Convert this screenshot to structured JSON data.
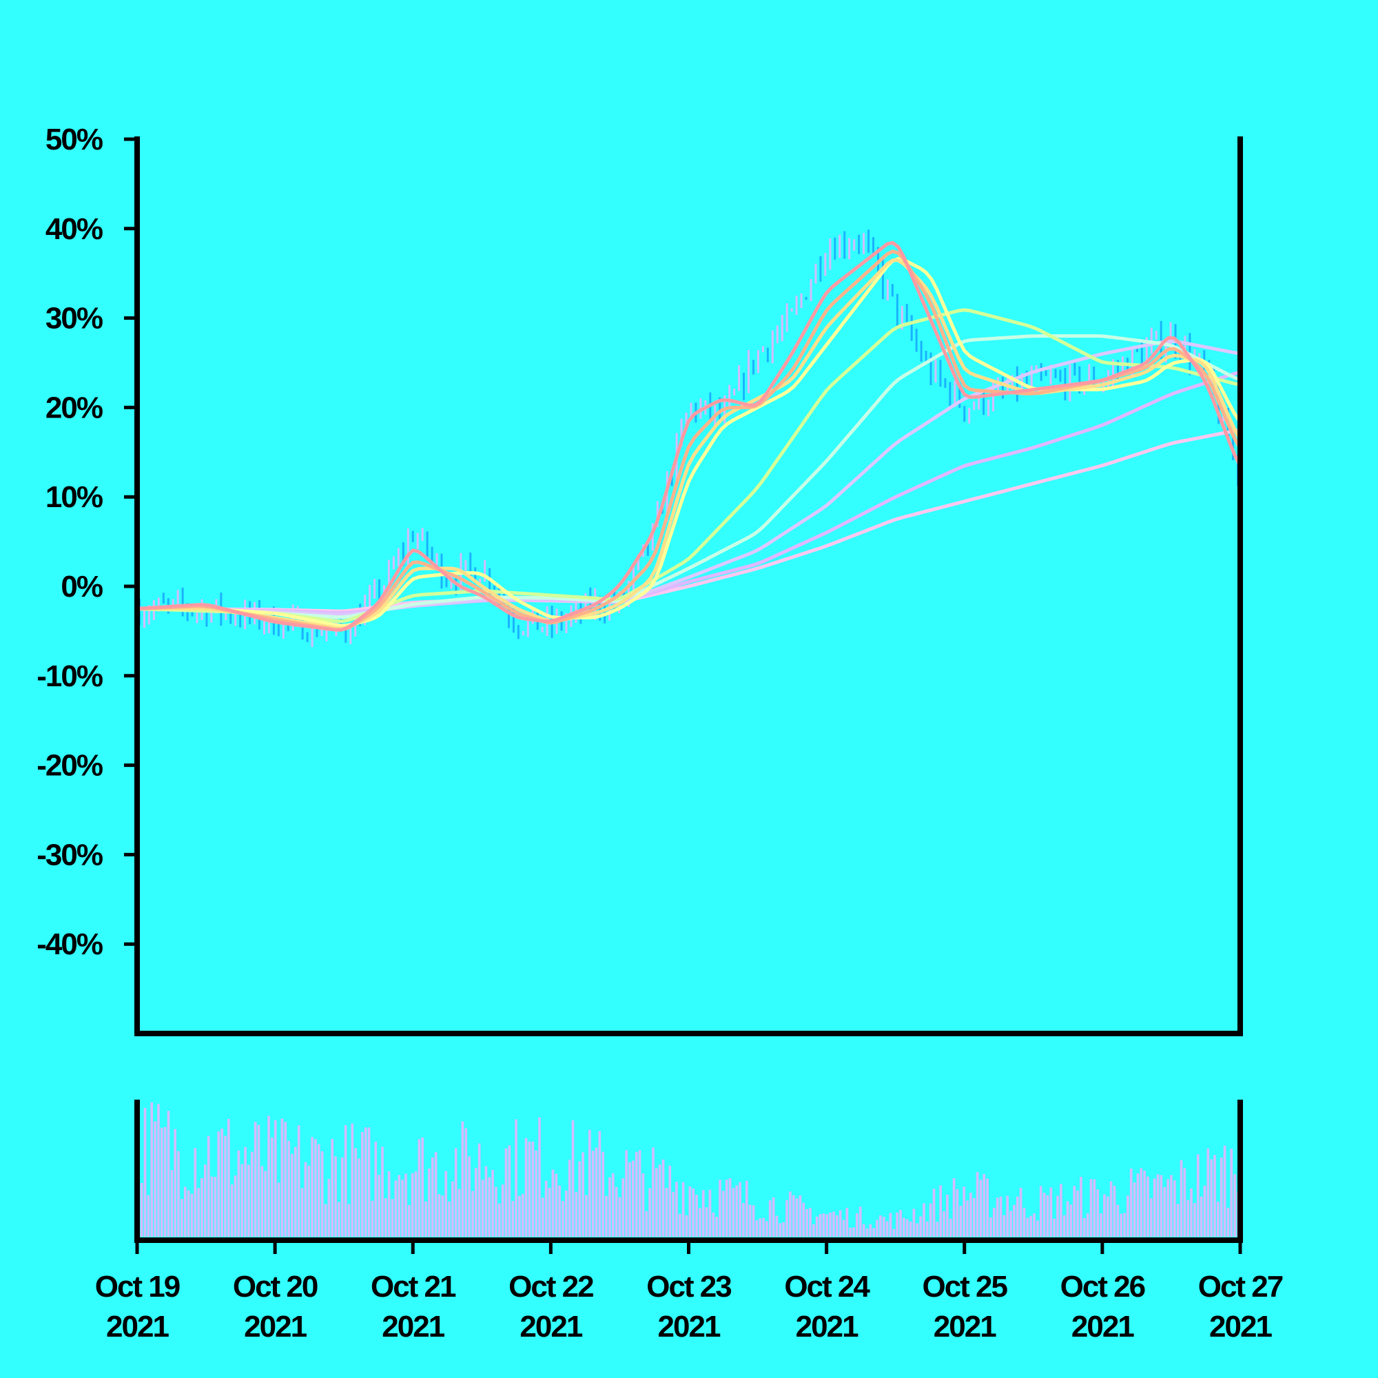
{
  "chart_data": {
    "type": "line",
    "subtype": "candlestick-with-moving-averages-and-volume",
    "title": "",
    "xlabel": "",
    "ylabel": "",
    "ylim": [
      -0.5,
      0.5
    ],
    "y_ticks": [
      0.5,
      0.4,
      0.3,
      0.2,
      0.1,
      0.0,
      -0.1,
      -0.2,
      -0.3,
      -0.4
    ],
    "y_tick_labels": [
      "50%",
      "40%",
      "30%",
      "20%",
      "10%",
      "0%",
      "-10%",
      "-20%",
      "-30%",
      "-40%"
    ],
    "x_range": [
      "2021-10-19",
      "2021-10-27"
    ],
    "x_ticks": [
      "2021-10-19",
      "2021-10-20",
      "2021-10-21",
      "2021-10-22",
      "2021-10-23",
      "2021-10-24",
      "2021-10-25",
      "2021-10-26",
      "2021-10-27"
    ],
    "x_tick_labels": [
      [
        "Oct 19",
        "2021"
      ],
      [
        "Oct 20",
        "2021"
      ],
      [
        "Oct 21",
        "2021"
      ],
      [
        "Oct 22",
        "2021"
      ],
      [
        "Oct 23",
        "2021"
      ],
      [
        "Oct 24",
        "2021"
      ],
      [
        "Oct 25",
        "2021"
      ],
      [
        "Oct 26",
        "2021"
      ],
      [
        "Oct 27",
        "2021"
      ]
    ],
    "grid": false,
    "legend": "none",
    "price_path": {
      "x": [
        "2021-10-19T00:00",
        "2021-10-19T12:00",
        "2021-10-20T00:00",
        "2021-10-20T12:00",
        "2021-10-20T18:00",
        "2021-10-21T00:00",
        "2021-10-21T06:00",
        "2021-10-21T12:00",
        "2021-10-21T18:00",
        "2021-10-22T00:00",
        "2021-10-22T08:00",
        "2021-10-22T12:00",
        "2021-10-22T18:00",
        "2021-10-23T00:00",
        "2021-10-23T06:00",
        "2021-10-23T12:00",
        "2021-10-23T18:00",
        "2021-10-24T00:00",
        "2021-10-24T06:00",
        "2021-10-24T12:00",
        "2021-10-24T18:00",
        "2021-10-25T00:00",
        "2021-10-25T12:00",
        "2021-10-26T00:00",
        "2021-10-26T06:00",
        "2021-10-26T12:00",
        "2021-10-26T18:00",
        "2021-10-27T00:00"
      ],
      "y": [
        -0.025,
        -0.025,
        -0.04,
        -0.05,
        -0.01,
        0.06,
        0.01,
        0.02,
        -0.04,
        -0.045,
        -0.02,
        -0.02,
        0.06,
        0.2,
        0.19,
        0.26,
        0.3,
        0.38,
        0.39,
        0.31,
        0.24,
        0.2,
        0.23,
        0.23,
        0.26,
        0.28,
        0.24,
        0.12
      ]
    },
    "series": [
      {
        "color": "#ff9aa2",
        "x": [
          "2021-10-19T00:00",
          "2021-10-19T12:00",
          "2021-10-20T00:00",
          "2021-10-20T12:00",
          "2021-10-20T18:00",
          "2021-10-21T00:00",
          "2021-10-21T08:00",
          "2021-10-21T12:00",
          "2021-10-21T18:00",
          "2021-10-22T00:00",
          "2021-10-22T08:00",
          "2021-10-22T12:00",
          "2021-10-22T18:00",
          "2021-10-23T00:00",
          "2021-10-23T06:00",
          "2021-10-23T12:00",
          "2021-10-23T18:00",
          "2021-10-24T00:00",
          "2021-10-24T12:00",
          "2021-10-24T18:00",
          "2021-10-25T00:00",
          "2021-10-25T12:00",
          "2021-10-26T00:00",
          "2021-10-26T08:00",
          "2021-10-26T12:00",
          "2021-10-26T18:00",
          "2021-10-27T00:00"
        ],
        "y": [
          -0.025,
          -0.02,
          -0.04,
          -0.05,
          -0.02,
          0.045,
          0.0,
          -0.01,
          -0.035,
          -0.04,
          -0.02,
          0.0,
          0.06,
          0.19,
          0.21,
          0.2,
          0.26,
          0.33,
          0.39,
          0.3,
          0.21,
          0.22,
          0.23,
          0.25,
          0.285,
          0.23,
          0.13
        ]
      },
      {
        "color": "#ffb38a",
        "x": [
          "2021-10-19T00:00",
          "2021-10-19T12:00",
          "2021-10-20T00:00",
          "2021-10-20T12:00",
          "2021-10-20T18:00",
          "2021-10-21T00:00",
          "2021-10-21T08:00",
          "2021-10-21T12:00",
          "2021-10-21T18:00",
          "2021-10-22T00:00",
          "2021-10-22T08:00",
          "2021-10-22T12:00",
          "2021-10-22T18:00",
          "2021-10-23T00:00",
          "2021-10-23T06:00",
          "2021-10-23T12:00",
          "2021-10-23T18:00",
          "2021-10-24T00:00",
          "2021-10-24T12:00",
          "2021-10-24T18:00",
          "2021-10-25T00:00",
          "2021-10-25T12:00",
          "2021-10-26T00:00",
          "2021-10-26T08:00",
          "2021-10-26T12:00",
          "2021-10-26T18:00",
          "2021-10-27T00:00"
        ],
        "y": [
          -0.025,
          -0.022,
          -0.037,
          -0.05,
          -0.025,
          0.03,
          0.01,
          -0.005,
          -0.03,
          -0.042,
          -0.025,
          -0.01,
          0.03,
          0.16,
          0.2,
          0.2,
          0.24,
          0.31,
          0.38,
          0.32,
          0.22,
          0.215,
          0.23,
          0.245,
          0.27,
          0.24,
          0.15
        ]
      },
      {
        "color": "#ffe08a",
        "x": [
          "2021-10-19T00:00",
          "2021-10-19T12:00",
          "2021-10-20T00:00",
          "2021-10-20T12:00",
          "2021-10-20T18:00",
          "2021-10-21T00:00",
          "2021-10-21T08:00",
          "2021-10-21T12:00",
          "2021-10-21T18:00",
          "2021-10-22T00:00",
          "2021-10-22T08:00",
          "2021-10-22T12:00",
          "2021-10-22T18:00",
          "2021-10-23T00:00",
          "2021-10-23T06:00",
          "2021-10-23T12:00",
          "2021-10-23T18:00",
          "2021-10-24T00:00",
          "2021-10-24T12:00",
          "2021-10-24T18:00",
          "2021-10-25T00:00",
          "2021-10-25T12:00",
          "2021-10-26T00:00",
          "2021-10-26T08:00",
          "2021-10-26T12:00",
          "2021-10-26T18:00",
          "2021-10-27T00:00"
        ],
        "y": [
          -0.025,
          -0.025,
          -0.035,
          -0.048,
          -0.03,
          0.02,
          0.02,
          0.0,
          -0.025,
          -0.04,
          -0.03,
          -0.02,
          0.01,
          0.14,
          0.19,
          0.21,
          0.23,
          0.29,
          0.37,
          0.33,
          0.24,
          0.215,
          0.225,
          0.24,
          0.26,
          0.25,
          0.16
        ]
      },
      {
        "color": "#ffff99",
        "x": [
          "2021-10-19T00:00",
          "2021-10-19T12:00",
          "2021-10-20T00:00",
          "2021-10-20T12:00",
          "2021-10-20T18:00",
          "2021-10-21T00:00",
          "2021-10-21T08:00",
          "2021-10-21T12:00",
          "2021-10-21T18:00",
          "2021-10-22T00:00",
          "2021-10-22T08:00",
          "2021-10-22T12:00",
          "2021-10-22T18:00",
          "2021-10-23T00:00",
          "2021-10-23T06:00",
          "2021-10-23T12:00",
          "2021-10-23T18:00",
          "2021-10-24T00:00",
          "2021-10-24T12:00",
          "2021-10-24T18:00",
          "2021-10-25T00:00",
          "2021-10-25T12:00",
          "2021-10-26T00:00",
          "2021-10-26T08:00",
          "2021-10-26T12:00",
          "2021-10-26T18:00",
          "2021-10-27T00:00"
        ],
        "y": [
          -0.025,
          -0.025,
          -0.03,
          -0.045,
          -0.035,
          0.01,
          0.015,
          0.015,
          -0.015,
          -0.035,
          -0.035,
          -0.025,
          0.0,
          0.12,
          0.18,
          0.2,
          0.22,
          0.27,
          0.37,
          0.35,
          0.26,
          0.22,
          0.22,
          0.23,
          0.25,
          0.255,
          0.18
        ]
      },
      {
        "color": "#d4ff99",
        "x": [
          "2021-10-19T00:00",
          "2021-10-20T00:00",
          "2021-10-20T12:00",
          "2021-10-21T00:00",
          "2021-10-21T12:00",
          "2021-10-22T00:00",
          "2021-10-22T12:00",
          "2021-10-23T00:00",
          "2021-10-23T12:00",
          "2021-10-24T00:00",
          "2021-10-24T12:00",
          "2021-10-25T00:00",
          "2021-10-25T12:00",
          "2021-10-26T00:00",
          "2021-10-26T12:00",
          "2021-10-27T00:00"
        ],
        "y": [
          -0.025,
          -0.03,
          -0.04,
          -0.01,
          -0.005,
          -0.01,
          -0.015,
          0.03,
          0.11,
          0.22,
          0.29,
          0.31,
          0.29,
          0.25,
          0.245,
          0.225
        ]
      },
      {
        "color": "#c8ffe6",
        "x": [
          "2021-10-19T00:00",
          "2021-10-20T00:00",
          "2021-10-20T12:00",
          "2021-10-21T00:00",
          "2021-10-21T12:00",
          "2021-10-22T00:00",
          "2021-10-22T12:00",
          "2021-10-23T00:00",
          "2021-10-23T12:00",
          "2021-10-24T00:00",
          "2021-10-24T12:00",
          "2021-10-25T00:00",
          "2021-10-25T12:00",
          "2021-10-26T00:00",
          "2021-10-26T12:00",
          "2021-10-27T00:00"
        ],
        "y": [
          -0.025,
          -0.03,
          -0.035,
          -0.02,
          -0.012,
          -0.013,
          -0.017,
          0.02,
          0.06,
          0.14,
          0.23,
          0.275,
          0.28,
          0.28,
          0.27,
          0.23
        ]
      },
      {
        "color": "#dcc8ff",
        "x": [
          "2021-10-19T00:00",
          "2021-10-20T00:00",
          "2021-10-20T12:00",
          "2021-10-21T00:00",
          "2021-10-21T12:00",
          "2021-10-22T00:00",
          "2021-10-22T12:00",
          "2021-10-23T00:00",
          "2021-10-23T12:00",
          "2021-10-24T00:00",
          "2021-10-24T12:00",
          "2021-10-25T00:00",
          "2021-10-25T12:00",
          "2021-10-26T00:00",
          "2021-10-26T12:00",
          "2021-10-27T00:00"
        ],
        "y": [
          -0.025,
          -0.028,
          -0.032,
          -0.022,
          -0.015,
          -0.014,
          -0.018,
          0.01,
          0.04,
          0.09,
          0.16,
          0.21,
          0.24,
          0.26,
          0.275,
          0.26
        ]
      },
      {
        "color": "#e0b8ff",
        "x": [
          "2021-10-19T00:00",
          "2021-10-20T00:00",
          "2021-10-20T12:00",
          "2021-10-21T00:00",
          "2021-10-21T12:00",
          "2021-10-22T00:00",
          "2021-10-22T12:00",
          "2021-10-23T00:00",
          "2021-10-23T12:00",
          "2021-10-24T00:00",
          "2021-10-24T12:00",
          "2021-10-25T00:00",
          "2021-10-25T12:00",
          "2021-10-26T00:00",
          "2021-10-26T12:00",
          "2021-10-27T00:00"
        ],
        "y": [
          -0.025,
          -0.027,
          -0.03,
          -0.022,
          -0.016,
          -0.015,
          -0.018,
          0.005,
          0.025,
          0.06,
          0.1,
          0.135,
          0.155,
          0.18,
          0.215,
          0.24
        ]
      },
      {
        "color": "#ffc8f0",
        "x": [
          "2021-10-19T00:00",
          "2021-10-20T00:00",
          "2021-10-20T12:00",
          "2021-10-21T00:00",
          "2021-10-21T12:00",
          "2021-10-22T00:00",
          "2021-10-22T12:00",
          "2021-10-23T00:00",
          "2021-10-23T12:00",
          "2021-10-24T00:00",
          "2021-10-24T12:00",
          "2021-10-25T00:00",
          "2021-10-25T12:00",
          "2021-10-26T00:00",
          "2021-10-26T12:00",
          "2021-10-27T00:00"
        ],
        "y": [
          -0.025,
          -0.026,
          -0.028,
          -0.018,
          -0.015,
          -0.016,
          -0.018,
          0.0,
          0.02,
          0.045,
          0.075,
          0.095,
          0.115,
          0.135,
          0.16,
          0.175
        ]
      }
    ],
    "volume_color": "#d4bbff",
    "candle_color_up": "#d4bbff",
    "candle_color_down": "#1ab2ff",
    "volume": {
      "profile_x": [
        "2021-10-19",
        "2021-10-20",
        "2021-10-21",
        "2021-10-22",
        "2021-10-22T12:00",
        "2021-10-23",
        "2021-10-24",
        "2021-10-24T12:00",
        "2021-10-25",
        "2021-10-25T12:00",
        "2021-10-26",
        "2021-10-26T12:00",
        "2021-10-27"
      ],
      "profile_level": [
        0.85,
        0.7,
        0.65,
        0.72,
        0.6,
        0.45,
        0.2,
        0.15,
        0.4,
        0.3,
        0.38,
        0.45,
        0.65
      ]
    }
  },
  "colors": {
    "background": "#33ffff",
    "axis": "#000000"
  }
}
